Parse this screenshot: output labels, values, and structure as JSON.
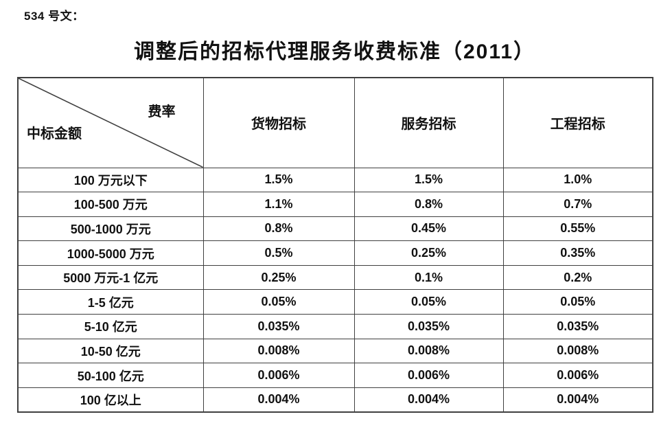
{
  "page": {
    "doc_label": "534 号文：",
    "title": "调整后的招标代理服务收费标准（2011）"
  },
  "table": {
    "corner": {
      "top_right": "费率",
      "bottom_left": "中标金额"
    },
    "columns": [
      "货物招标",
      "服务招标",
      "工程招标"
    ],
    "rows": [
      {
        "label": "100 万元以下",
        "values": [
          "1.5%",
          "1.5%",
          "1.0%"
        ]
      },
      {
        "label": "100-500 万元",
        "values": [
          "1.1%",
          "0.8%",
          "0.7%"
        ]
      },
      {
        "label": "500-1000 万元",
        "values": [
          "0.8%",
          "0.45%",
          "0.55%"
        ]
      },
      {
        "label": "1000-5000 万元",
        "values": [
          "0.5%",
          "0.25%",
          "0.35%"
        ]
      },
      {
        "label": "5000 万元-1 亿元",
        "values": [
          "0.25%",
          "0.1%",
          "0.2%"
        ]
      },
      {
        "label": "1-5 亿元",
        "values": [
          "0.05%",
          "0.05%",
          "0.05%"
        ]
      },
      {
        "label": "5-10 亿元",
        "values": [
          "0.035%",
          "0.035%",
          "0.035%"
        ]
      },
      {
        "label": "10-50 亿元",
        "values": [
          "0.008%",
          "0.008%",
          "0.008%"
        ]
      },
      {
        "label": "50-100 亿元",
        "values": [
          "0.006%",
          "0.006%",
          "0.006%"
        ]
      },
      {
        "label": "100 亿以上",
        "values": [
          "0.004%",
          "0.004%",
          "0.004%"
        ]
      }
    ],
    "colors": {
      "border": "#3f3f3f",
      "text": "#111111",
      "background": "#ffffff"
    }
  }
}
